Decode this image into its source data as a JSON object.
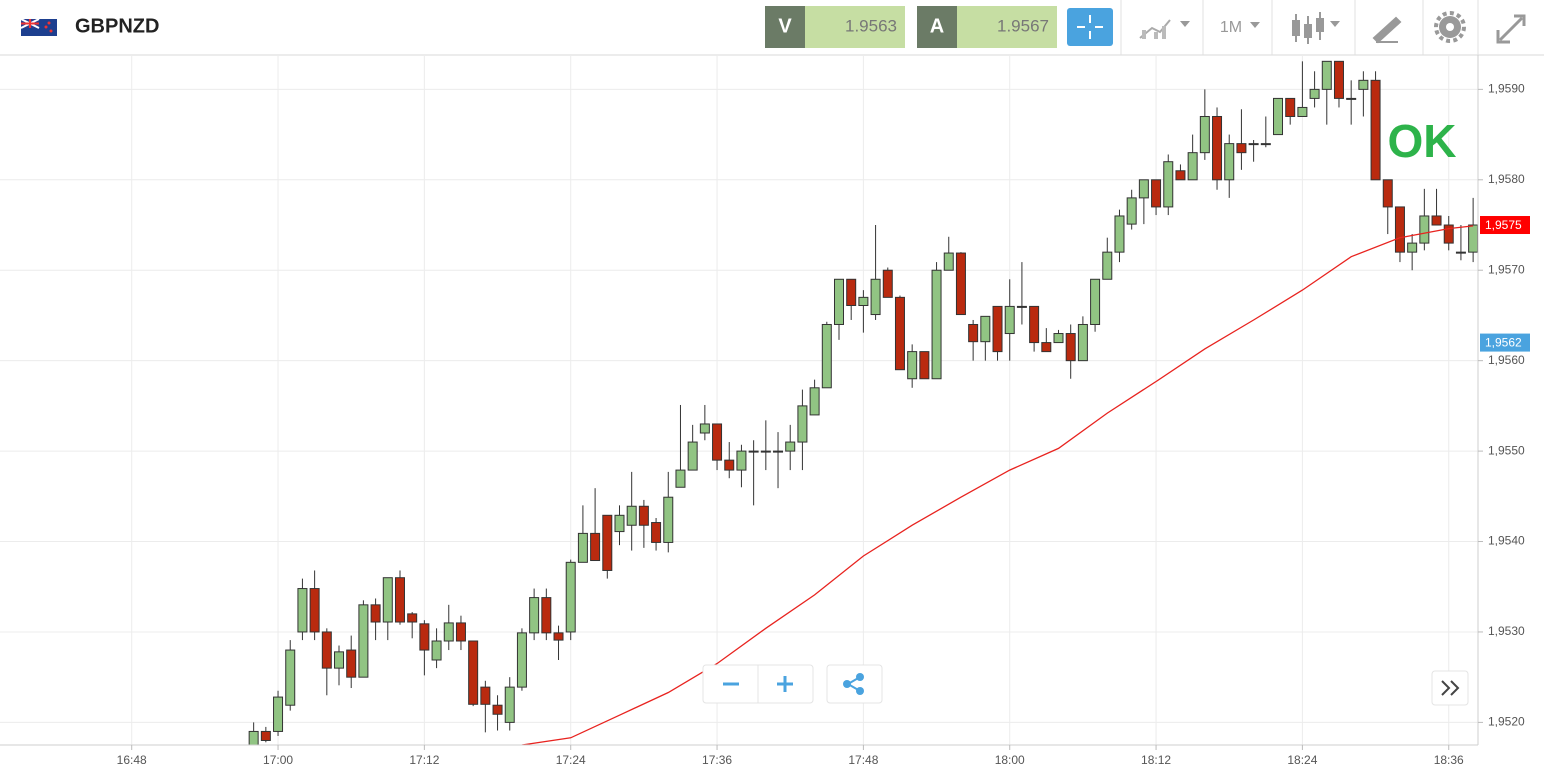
{
  "toolbar": {
    "symbol": "GBPNZD",
    "sell_label": "V",
    "sell_price": "1.9563",
    "buy_label": "A",
    "buy_price": "1.9567",
    "timeframe": "1M"
  },
  "chart_data": {
    "type": "candlestick",
    "title": "GBPNZD",
    "up_color": "#91c483",
    "down_color": "#b92a0f",
    "outline_color": "#333333",
    "x": [
      1018,
      1019,
      1020,
      1021,
      1022,
      1023,
      1024,
      1025,
      1026,
      1027,
      1028,
      1029,
      1030,
      1031,
      1032,
      1033,
      1034,
      1035,
      1036,
      1037,
      1038,
      1039,
      1040,
      1041,
      1042,
      1043,
      1044,
      1045,
      1046,
      1047,
      1048,
      1049,
      1050,
      1051,
      1052,
      1053,
      1054,
      1055,
      1056,
      1057,
      1058,
      1059,
      1060,
      1061,
      1062,
      1063,
      1064,
      1065,
      1066,
      1067,
      1068,
      1069,
      1070,
      1071,
      1072,
      1073,
      1074,
      1075,
      1076,
      1077,
      1078,
      1079,
      1080,
      1081,
      1082,
      1083,
      1084,
      1085,
      1086,
      1087,
      1088,
      1089,
      1090,
      1091,
      1092,
      1093,
      1094,
      1095,
      1096,
      1097,
      1098,
      1099,
      1100,
      1101,
      1102,
      1103,
      1104,
      1105,
      1106,
      1107,
      1108,
      1109,
      1110,
      1111,
      1112,
      1113,
      1114,
      1115,
      1116,
      1117,
      1118
    ],
    "open": [
      1.95175,
      1.9519,
      1.9519,
      1.95219,
      1.953,
      1.95348,
      1.953,
      1.9526,
      1.9528,
      1.9525,
      1.9533,
      1.95311,
      1.9536,
      1.9532,
      1.95309,
      1.95269,
      1.9529,
      1.9531,
      1.9529,
      1.95239,
      1.95219,
      1.952,
      1.95239,
      1.95299,
      1.95338,
      1.95299,
      1.953,
      1.95377,
      1.95409,
      1.95429,
      1.95411,
      1.95418,
      1.95439,
      1.95421,
      1.95399,
      1.9546,
      1.95479,
      1.9552,
      1.9553,
      1.9549,
      1.95479,
      1.955,
      1.955,
      1.955,
      1.955,
      1.9551,
      1.9554,
      1.9557,
      1.9564,
      1.9569,
      1.95661,
      1.95651,
      1.957,
      1.9567,
      1.9558,
      1.9561,
      1.9558,
      1.957,
      1.95719,
      1.9564,
      1.95621,
      1.9566,
      1.9563,
      1.9566,
      1.9566,
      1.9562,
      1.9562,
      1.9563,
      1.956,
      1.9564,
      1.9569,
      1.9572,
      1.95751,
      1.9578,
      1.958,
      1.9577,
      1.9581,
      1.958,
      1.9583,
      1.9587,
      1.958,
      1.9584,
      1.9584,
      1.9584,
      1.9585,
      1.9589,
      1.9587,
      1.9589,
      1.959,
      1.95931,
      1.9589,
      1.959,
      1.9591,
      1.958,
      1.9577,
      1.9572,
      1.9573,
      1.9576,
      1.9575,
      1.9572,
      1.9572
    ],
    "high": [
      1.952,
      1.95195,
      1.95235,
      1.95291,
      1.95359,
      1.95368,
      1.95304,
      1.95285,
      1.95296,
      1.95335,
      1.95337,
      1.9536,
      1.95368,
      1.95322,
      1.95313,
      1.95304,
      1.9533,
      1.95318,
      1.9529,
      1.95246,
      1.9523,
      1.9525,
      1.95304,
      1.95348,
      1.95348,
      1.95307,
      1.9538,
      1.9544,
      1.95459,
      1.95429,
      1.9544,
      1.95477,
      1.95446,
      1.95426,
      1.95477,
      1.95551,
      1.95529,
      1.95551,
      1.9553,
      1.9551,
      1.95507,
      1.95512,
      1.95534,
      1.95521,
      1.95529,
      1.95568,
      1.95579,
      1.95643,
      1.9569,
      1.9569,
      1.95678,
      1.9575,
      1.95703,
      1.95672,
      1.95618,
      1.9561,
      1.95709,
      1.95737,
      1.9572,
      1.95645,
      1.95649,
      1.9566,
      1.9569,
      1.95709,
      1.9566,
      1.95636,
      1.95634,
      1.9564,
      1.95649,
      1.9569,
      1.95736,
      1.95767,
      1.95789,
      1.958,
      1.958,
      1.95828,
      1.95817,
      1.9585,
      1.959,
      1.9588,
      1.9585,
      1.95878,
      1.95844,
      1.9587,
      1.9589,
      1.9589,
      1.95931,
      1.9592,
      1.95931,
      1.95931,
      1.9591,
      1.9592,
      1.9592,
      1.958,
      1.9577,
      1.9574,
      1.9579,
      1.9579,
      1.9576,
      1.9575,
      1.9578
    ],
    "low": [
      1.95175,
      1.95178,
      1.95185,
      1.95213,
      1.95291,
      1.95291,
      1.9523,
      1.95241,
      1.95238,
      1.9525,
      1.95291,
      1.95291,
      1.95308,
      1.95293,
      1.95252,
      1.9526,
      1.9528,
      1.9528,
      1.95218,
      1.95189,
      1.95191,
      1.95191,
      1.95235,
      1.95291,
      1.95291,
      1.95269,
      1.95291,
      1.95377,
      1.95379,
      1.95359,
      1.95396,
      1.9539,
      1.95393,
      1.9539,
      1.95388,
      1.9546,
      1.95479,
      1.95512,
      1.95479,
      1.9547,
      1.9546,
      1.9544,
      1.95479,
      1.95459,
      1.95479,
      1.95479,
      1.9554,
      1.9557,
      1.95623,
      1.95645,
      1.95631,
      1.95645,
      1.9567,
      1.9559,
      1.9557,
      1.9558,
      1.9558,
      1.957,
      1.95651,
      1.956,
      1.956,
      1.956,
      1.956,
      1.9564,
      1.9561,
      1.9561,
      1.9562,
      1.9558,
      1.956,
      1.95632,
      1.9569,
      1.95709,
      1.95745,
      1.95751,
      1.95761,
      1.95761,
      1.958,
      1.958,
      1.95822,
      1.95789,
      1.9578,
      1.95811,
      1.9582,
      1.95836,
      1.9585,
      1.95861,
      1.9587,
      1.9588,
      1.95861,
      1.9588,
      1.95861,
      1.9587,
      1.958,
      1.9574,
      1.95709,
      1.957,
      1.95722,
      1.9575,
      1.95722,
      1.95711,
      1.95709
    ],
    "close": [
      1.9519,
      1.9518,
      1.95228,
      1.9528,
      1.95348,
      1.953,
      1.9526,
      1.95278,
      1.9525,
      1.9533,
      1.95311,
      1.9536,
      1.95311,
      1.95311,
      1.9528,
      1.9529,
      1.9531,
      1.9529,
      1.9522,
      1.9522,
      1.95209,
      1.95239,
      1.95299,
      1.95338,
      1.95299,
      1.95291,
      1.95377,
      1.95409,
      1.95379,
      1.95368,
      1.95429,
      1.95439,
      1.95418,
      1.95399,
      1.95449,
      1.95479,
      1.9551,
      1.9553,
      1.9549,
      1.95479,
      1.955,
      1.955,
      1.955,
      1.955,
      1.9551,
      1.9555,
      1.9557,
      1.9564,
      1.9569,
      1.95661,
      1.9567,
      1.9569,
      1.9567,
      1.9559,
      1.9561,
      1.9558,
      1.957,
      1.95719,
      1.95651,
      1.95621,
      1.95649,
      1.9561,
      1.9566,
      1.9566,
      1.9562,
      1.9561,
      1.9563,
      1.956,
      1.9564,
      1.9569,
      1.9572,
      1.9576,
      1.9578,
      1.958,
      1.9577,
      1.9582,
      1.958,
      1.9583,
      1.9587,
      1.958,
      1.9584,
      1.9583,
      1.9584,
      1.9584,
      1.9589,
      1.9587,
      1.9588,
      1.959,
      1.95931,
      1.9589,
      1.9589,
      1.9591,
      1.958,
      1.9577,
      1.9572,
      1.9573,
      1.9576,
      1.9575,
      1.9573,
      1.9572,
      1.9575
    ],
    "lines": [
      {
        "color": "#e8231f",
        "x": [
          1032,
          1036,
          1040,
          1044,
          1048,
          1052,
          1056,
          1060,
          1064,
          1068,
          1072,
          1076,
          1080,
          1084,
          1088,
          1092,
          1096,
          1100,
          1104,
          1108,
          1112,
          1116,
          1118
        ],
        "values": [
          1.95171,
          1.95173,
          1.95175,
          1.95183,
          1.95208,
          1.95233,
          1.95265,
          1.95304,
          1.95341,
          1.95384,
          1.95418,
          1.95449,
          1.95479,
          1.95503,
          1.95542,
          1.95577,
          1.95613,
          1.95645,
          1.95678,
          1.95715,
          1.95736,
          1.95746,
          1.95749
        ]
      }
    ],
    "xlim": [
      997.2,
      1118.4
    ],
    "xticks": [
      {
        "value": 1008,
        "label": "16:48"
      },
      {
        "value": 1020,
        "label": "17:00"
      },
      {
        "value": 1032,
        "label": "17:12"
      },
      {
        "value": 1044,
        "label": "17:24"
      },
      {
        "value": 1056,
        "label": "17:36"
      },
      {
        "value": 1068,
        "label": "17:48"
      },
      {
        "value": 1080,
        "label": "18:00"
      },
      {
        "value": 1092,
        "label": "18:12"
      },
      {
        "value": 1104,
        "label": "18:24"
      },
      {
        "value": 1116,
        "label": "18:36"
      }
    ],
    "ylim": [
      1.95175,
      1.95938
    ],
    "yticks": [
      {
        "value": 1.952,
        "label": "1,9520"
      },
      {
        "value": 1.953,
        "label": "1,9530"
      },
      {
        "value": 1.954,
        "label": "1,9540"
      },
      {
        "value": 1.955,
        "label": "1,9550"
      },
      {
        "value": 1.956,
        "label": "1,9560"
      },
      {
        "value": 1.957,
        "label": "1,9570"
      },
      {
        "value": 1.958,
        "label": "1,9580"
      },
      {
        "value": 1.959,
        "label": "1,9590"
      }
    ],
    "grid": true,
    "price_markers": [
      {
        "value": 1.9575,
        "label": "1,9575",
        "color": "#ff0000"
      },
      {
        "value": 1.9562,
        "label": "1,9562",
        "color": "#4aa3df"
      }
    ],
    "annotation": {
      "text": "OK",
      "color": "#2db34a"
    }
  }
}
